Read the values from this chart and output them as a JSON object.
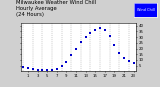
{
  "hours": [
    0,
    1,
    2,
    3,
    4,
    5,
    6,
    7,
    8,
    9,
    10,
    11,
    12,
    13,
    14,
    15,
    16,
    17,
    18,
    19,
    20,
    21,
    22,
    23
  ],
  "wind_chill": [
    3.5,
    2.5,
    1.8,
    1.5,
    1.2,
    1.0,
    1.3,
    2.0,
    4.5,
    8.5,
    14.0,
    20.0,
    25.5,
    30.0,
    33.5,
    36.5,
    38.0,
    36.5,
    31.0,
    23.0,
    16.5,
    12.0,
    9.0,
    7.5
  ],
  "line_color": "#0000cc",
  "bg_color": "#ffffff",
  "grid_color": "#999999",
  "title_line1": "Milwaukee Weather Wind Chill",
  "title_line2": "Hourly Average",
  "title_line3": "(24 Hours)",
  "title_fontsize": 3.8,
  "legend_label": "Wind Chill",
  "legend_color": "#0000ff",
  "ylim": [
    0,
    42
  ],
  "yticks": [
    5,
    10,
    15,
    20,
    25,
    30,
    35,
    40
  ],
  "ytick_labels": [
    "5",
    "10",
    "15",
    "20",
    "25",
    "30",
    "35",
    "40"
  ],
  "xtick_hours": [
    1,
    3,
    5,
    7,
    9,
    11,
    13,
    15,
    17,
    19,
    21,
    23
  ],
  "xtick_labels": [
    "1",
    "3",
    "5",
    "7",
    "9",
    "11",
    "13",
    "15",
    "17",
    "19",
    "21",
    "23"
  ],
  "marker_size": 1.5,
  "outer_bg": "#d0d0d0"
}
